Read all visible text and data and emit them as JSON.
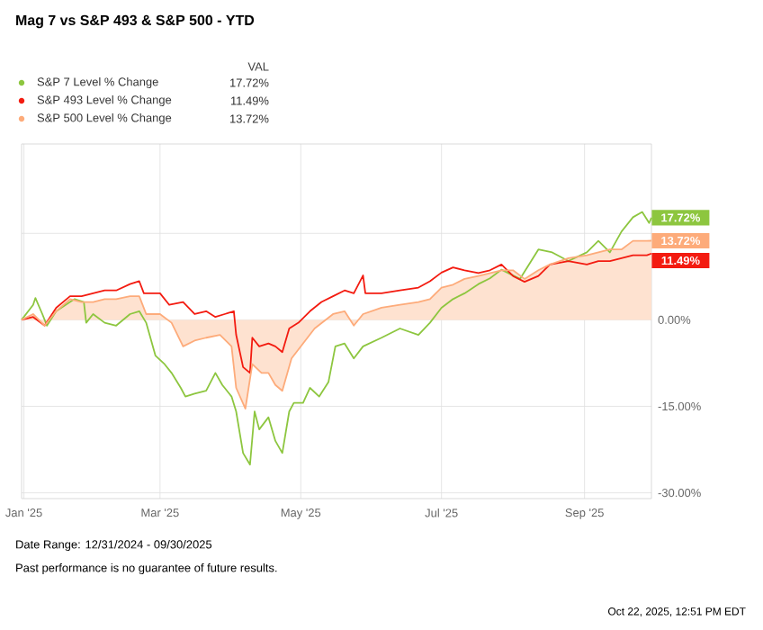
{
  "chart_data": {
    "type": "line",
    "title": "Mag 7 vs S&P 493 & S&P 500 - YTD",
    "legend_title": "VAL",
    "legend": "top left",
    "grid": true,
    "xlim": [
      "2024-12-31",
      "2025-09-30"
    ],
    "xticks": [
      {
        "value": "2025-01-01",
        "label": "Jan '25"
      },
      {
        "value": "2025-03-01",
        "label": "Mar '25"
      },
      {
        "value": "2025-05-01",
        "label": "May '25"
      },
      {
        "value": "2025-07-01",
        "label": "Jul '25"
      },
      {
        "value": "2025-09-01",
        "label": "Sep '25"
      }
    ],
    "ylim": [
      -31,
      30.5
    ],
    "yticks": [
      {
        "value": 15,
        "label": null
      },
      {
        "value": 0,
        "label": "0.00%"
      },
      {
        "value": -15,
        "label": "-15.00%"
      },
      {
        "value": -30,
        "label": "-30.00%"
      }
    ],
    "series": [
      {
        "name": "S&P 7 Level % Change",
        "color": "#8dc63f",
        "x": [
          "2024-12-31",
          "2025-01-05",
          "2025-01-06",
          "2025-01-09",
          "2025-01-11",
          "2025-01-15",
          "2025-01-21",
          "2025-01-23",
          "2025-01-27",
          "2025-01-28",
          "2025-01-31",
          "2025-02-05",
          "2025-02-10",
          "2025-02-16",
          "2025-02-20",
          "2025-02-23",
          "2025-02-27",
          "2025-03-03",
          "2025-03-06",
          "2025-03-10",
          "2025-03-12",
          "2025-03-16",
          "2025-03-21",
          "2025-03-25",
          "2025-03-28",
          "2025-04-01",
          "2025-04-03",
          "2025-04-06",
          "2025-04-09",
          "2025-04-11",
          "2025-04-13",
          "2025-04-17",
          "2025-04-20",
          "2025-04-23",
          "2025-04-26",
          "2025-04-28",
          "2025-05-02",
          "2025-05-05",
          "2025-05-09",
          "2025-05-13",
          "2025-05-16",
          "2025-05-20",
          "2025-05-24",
          "2025-05-28",
          "2025-06-05",
          "2025-06-13",
          "2025-06-21",
          "2025-06-26",
          "2025-07-01",
          "2025-07-06",
          "2025-07-11",
          "2025-07-17",
          "2025-07-22",
          "2025-07-27",
          "2025-08-04",
          "2025-08-12",
          "2025-08-18",
          "2025-08-25",
          "2025-09-02",
          "2025-09-07",
          "2025-09-12",
          "2025-09-17",
          "2025-09-22",
          "2025-09-26",
          "2025-09-29",
          "2025-09-30"
        ],
        "values": [
          0,
          2.6,
          3.8,
          1.0,
          -1.0,
          1.5,
          3.1,
          3.6,
          3.1,
          -0.5,
          1.0,
          -0.5,
          -1.0,
          1.0,
          1.5,
          -0.5,
          -6.2,
          -7.7,
          -9.2,
          -11.8,
          -13.3,
          -12.8,
          -12.3,
          -9.2,
          -11.3,
          -13.3,
          -15.9,
          -23.1,
          -25.1,
          -15.9,
          -19.0,
          -16.9,
          -21.0,
          -23.1,
          -15.9,
          -14.4,
          -14.4,
          -11.8,
          -13.3,
          -10.8,
          -4.6,
          -4.1,
          -6.7,
          -4.6,
          -3.1,
          -1.5,
          -2.6,
          -0.5,
          2.1,
          3.6,
          4.6,
          6.2,
          7.2,
          8.7,
          7.1,
          12.2,
          11.7,
          10.2,
          11.7,
          13.7,
          11.7,
          15.3,
          17.8,
          18.7,
          16.8,
          17.72
        ]
      },
      {
        "name": "S&P 493 Level % Change",
        "color": "#f31b10",
        "x": [
          "2024-12-31",
          "2025-01-05",
          "2025-01-10",
          "2025-01-15",
          "2025-01-21",
          "2025-01-26",
          "2025-01-31",
          "2025-02-05",
          "2025-02-10",
          "2025-02-16",
          "2025-02-20",
          "2025-02-22",
          "2025-03-01",
          "2025-03-05",
          "2025-03-11",
          "2025-03-16",
          "2025-03-21",
          "2025-03-25",
          "2025-03-29",
          "2025-04-02",
          "2025-04-03",
          "2025-04-06",
          "2025-04-09",
          "2025-04-10",
          "2025-04-13",
          "2025-04-17",
          "2025-04-20",
          "2025-04-23",
          "2025-04-26",
          "2025-04-30",
          "2025-05-05",
          "2025-05-10",
          "2025-05-15",
          "2025-05-20",
          "2025-05-24",
          "2025-05-28",
          "2025-05-29",
          "2025-06-05",
          "2025-06-13",
          "2025-06-21",
          "2025-06-26",
          "2025-07-01",
          "2025-07-06",
          "2025-07-11",
          "2025-07-17",
          "2025-07-22",
          "2025-07-27",
          "2025-08-01",
          "2025-08-06",
          "2025-08-12",
          "2025-08-17",
          "2025-08-25",
          "2025-09-02",
          "2025-09-07",
          "2025-09-12",
          "2025-09-17",
          "2025-09-22",
          "2025-09-28",
          "2025-09-30"
        ],
        "values": [
          0,
          0.5,
          -1.0,
          2.1,
          4.1,
          4.1,
          4.6,
          5.1,
          5.1,
          6.2,
          6.7,
          4.6,
          4.6,
          2.6,
          3.1,
          1.0,
          1.5,
          0.5,
          1.0,
          1.5,
          -2.6,
          -8.2,
          -9.2,
          -3.1,
          -4.6,
          -4.1,
          -4.6,
          -5.6,
          -1.5,
          -0.5,
          1.5,
          3.1,
          4.1,
          5.1,
          4.6,
          7.7,
          4.6,
          4.6,
          5.1,
          5.6,
          6.7,
          8.2,
          9.1,
          8.6,
          8.1,
          8.6,
          9.6,
          7.6,
          6.6,
          7.6,
          9.6,
          10.2,
          9.6,
          10.2,
          10.2,
          10.7,
          11.2,
          11.2,
          11.49
        ]
      },
      {
        "name": "S&P 500 Level % Change",
        "color": "#fdab7a",
        "type": "area",
        "x": [
          "2024-12-31",
          "2025-01-05",
          "2025-01-10",
          "2025-01-15",
          "2025-01-21",
          "2025-01-26",
          "2025-01-31",
          "2025-02-05",
          "2025-02-10",
          "2025-02-16",
          "2025-02-20",
          "2025-02-23",
          "2025-03-01",
          "2025-03-06",
          "2025-03-11",
          "2025-03-16",
          "2025-03-21",
          "2025-03-27",
          "2025-04-01",
          "2025-04-03",
          "2025-04-07",
          "2025-04-10",
          "2025-04-14",
          "2025-04-17",
          "2025-04-20",
          "2025-04-23",
          "2025-04-27",
          "2025-05-02",
          "2025-05-07",
          "2025-05-15",
          "2025-05-20",
          "2025-05-24",
          "2025-05-28",
          "2025-06-05",
          "2025-06-13",
          "2025-06-21",
          "2025-06-26",
          "2025-07-01",
          "2025-07-06",
          "2025-07-11",
          "2025-07-17",
          "2025-07-22",
          "2025-07-27",
          "2025-08-01",
          "2025-08-06",
          "2025-08-12",
          "2025-08-17",
          "2025-08-25",
          "2025-09-02",
          "2025-09-07",
          "2025-09-12",
          "2025-09-17",
          "2025-09-22",
          "2025-09-28",
          "2025-09-30"
        ],
        "values": [
          0,
          1.0,
          -1.0,
          1.5,
          3.6,
          3.1,
          3.1,
          3.6,
          3.6,
          4.1,
          4.1,
          1.0,
          1.0,
          -0.5,
          -4.6,
          -3.6,
          -3.1,
          -2.6,
          -4.6,
          -11.8,
          -15.4,
          -7.7,
          -9.2,
          -9.2,
          -11.3,
          -12.3,
          -6.7,
          -4.1,
          -1.5,
          1.0,
          1.5,
          -1.0,
          1.0,
          2.1,
          2.6,
          3.1,
          3.6,
          5.6,
          6.1,
          7.1,
          7.6,
          8.1,
          8.6,
          8.6,
          7.1,
          8.6,
          9.6,
          10.7,
          11.2,
          11.7,
          12.2,
          12.2,
          13.7,
          13.7,
          13.72
        ]
      }
    ],
    "annotations": [
      {
        "text": "17.72%",
        "x": "2025-09-30",
        "y": 17.72
      },
      {
        "text": "11.49%",
        "x": "2025-09-30",
        "y": 11.49
      },
      {
        "text": "13.72%",
        "x": "2025-09-30",
        "y": 13.72
      },
      "Date Range: 12/31/2024 - 09/30/2025",
      "Past performance is no guarantee of future results.",
      "Oct 22, 2025, 12:51 PM EDT"
    ]
  }
}
